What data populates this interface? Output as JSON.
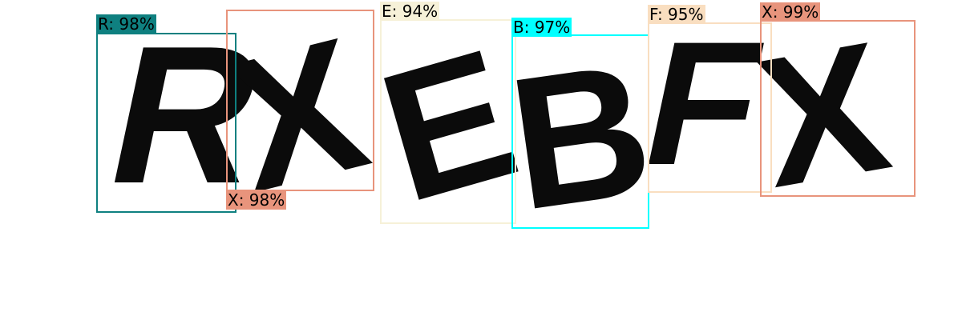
{
  "image": {
    "letters": [
      "R",
      "X",
      "E",
      "B",
      "F",
      "X"
    ]
  },
  "detections": [
    {
      "label": "R: 98%",
      "color": "#0f8080"
    },
    {
      "label": "X: 98%",
      "color": "#e8947c"
    },
    {
      "label": "E: 94%",
      "color": "#f6f1d8"
    },
    {
      "label": "B: 97%",
      "color": "#00ffff"
    },
    {
      "label": "F: 95%",
      "color": "#f9dec0"
    },
    {
      "label": "X: 99%",
      "color": "#e8947c"
    }
  ]
}
